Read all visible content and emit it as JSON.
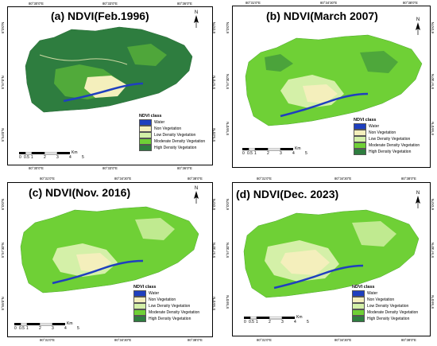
{
  "legend_colors": {
    "water": "#1f3fbf",
    "non_vegetation": "#f4efbc",
    "low_density": "#d4f0a8",
    "moderate_density": "#6fd036",
    "high_density": "#2e7d3f"
  },
  "north_label": "N",
  "scale_labels": [
    "0",
    "0.5",
    "1",
    "2",
    "3",
    "4",
    "5"
  ],
  "scale_unit": "Km",
  "legend_title": "NDVI class",
  "legend_items": [
    {
      "label": "Water",
      "color": "#1f3fbf"
    },
    {
      "label": "Non Vegetation",
      "color": "#f4efbc"
    },
    {
      "label": "Low Density Vegetation",
      "color": "#d4f0a8"
    },
    {
      "label": "Moderate Density Vegetation",
      "color": "#6fd036"
    },
    {
      "label": "High Density Vegetation",
      "color": "#2e7d3f"
    }
  ],
  "panels": [
    {
      "title": "(a) NDVI(Feb.1996)",
      "top_coords": [
        "80°30'0\"E",
        "80°33'0\"E",
        "80°36'0\"E"
      ],
      "bottom_coords": [
        "80°30'0\"E",
        "80°33'0\"E",
        "80°36'0\"E"
      ],
      "left_coords": [
        "6°0'0\"N",
        "5°57'0\"N",
        "5°54'0\"N"
      ],
      "right_coords": [
        "6°0'0\"N",
        "5°57'0\"N",
        "5°54'0\"N"
      ]
    },
    {
      "title": "(b) NDVI(March 2007)",
      "top_coords": [
        "80°31'0\"E",
        "80°34'30\"E",
        "80°38'0\"E"
      ],
      "bottom_coords": [],
      "left_coords": [
        "6°0'0\"N",
        "5°57'30\"N",
        "5°55'0\"N"
      ],
      "right_coords": [
        "6°0'0\"N",
        "5°57'30\"N",
        "5°55'0\"N"
      ]
    },
    {
      "title": "(c) NDVI(Nov. 2016)",
      "top_coords": [
        "80°31'0\"E",
        "80°34'30\"E",
        "80°38'0\"E"
      ],
      "bottom_coords": [
        "80°31'0\"E",
        "80°34'30\"E",
        "80°38'0\"E"
      ],
      "left_coords": [
        "6°0'0\"N",
        "5°57'30\"N",
        "5°55'0\"N"
      ],
      "right_coords": [
        "6°0'0\"N",
        "5°57'30\"N",
        "5°55'0\"N"
      ]
    },
    {
      "title": "(d) NDVI(Dec. 2023)",
      "top_coords": [
        "80°31'0\"E",
        "80°34'30\"E",
        "80°38'0\"E"
      ],
      "bottom_coords": [
        "80°31'0\"E",
        "80°34'30\"E",
        "80°38'0\"E"
      ],
      "left_coords": [
        "6°0'0\"N",
        "5°57'30\"N",
        "5°55'0\"N"
      ],
      "right_coords": [
        "6°0'0\"N",
        "5°57'30\"N",
        "5°55'0\"N"
      ]
    }
  ]
}
